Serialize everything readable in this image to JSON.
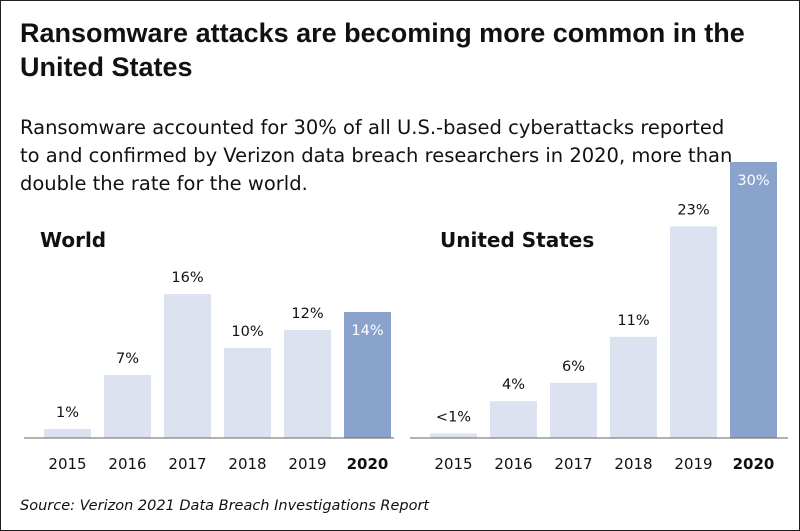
{
  "title": "Ransomware attacks are becoming more common in the United States",
  "subtitle": "Ransomware accounted for 30% of all U.S.-based cyberattacks reported to and confirmed by Verizon data breach researchers in 2020, more than double the rate for the world.",
  "source": "Source: Verizon 2021 Data Breach Investigations Report",
  "colors": {
    "bar_default": "#dde2f1",
    "bar_highlight": "#8aa3cd",
    "axis": "#666666",
    "label_on_highlight": "#ffffff",
    "label_default": "#111111"
  },
  "chart_data": [
    {
      "type": "bar",
      "title": "World",
      "categories": [
        "2015",
        "2016",
        "2017",
        "2018",
        "2019",
        "2020"
      ],
      "values": [
        1,
        7,
        16,
        10,
        12,
        14
      ],
      "value_labels": [
        "1%",
        "7%",
        "16%",
        "10%",
        "12%",
        "14%"
      ],
      "highlight_category": "2020",
      "ylim": [
        0,
        30
      ]
    },
    {
      "type": "bar",
      "title": "United States",
      "categories": [
        "2015",
        "2016",
        "2017",
        "2018",
        "2019",
        "2020"
      ],
      "values": [
        0.5,
        4,
        6,
        11,
        23,
        30
      ],
      "value_labels": [
        "<1%",
        "4%",
        "6%",
        "11%",
        "23%",
        "30%"
      ],
      "highlight_category": "2020",
      "ylim": [
        0,
        30
      ]
    }
  ]
}
